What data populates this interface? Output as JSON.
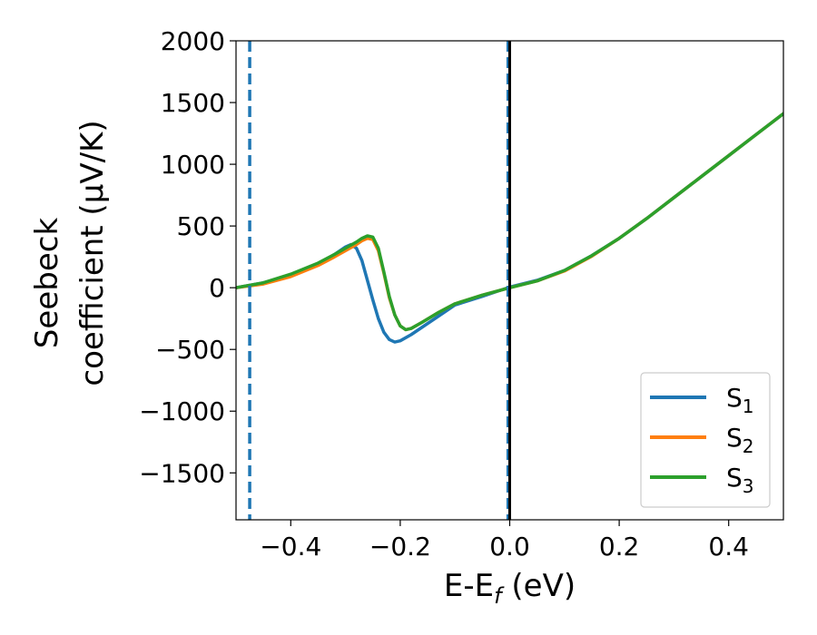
{
  "chart_data": {
    "type": "line",
    "title": "",
    "xlabel": "E-E",
    "xlabel_sub": "f",
    "xlabel_unit": " (eV)",
    "ylabel_line1": "Seebeck",
    "ylabel_line2": "coefficient  (μV/K)",
    "xlim": [
      -0.5,
      0.5
    ],
    "ylim": [
      -1880,
      2000
    ],
    "x_ticks": [
      -0.4,
      -0.2,
      0.0,
      0.2,
      0.4
    ],
    "x_tick_labels": [
      "−0.4",
      "−0.2",
      "0.0",
      "0.2",
      "0.4"
    ],
    "y_ticks": [
      2000,
      1500,
      1000,
      500,
      0,
      -500,
      -1000,
      -1500
    ],
    "y_tick_labels": [
      "2000",
      "1500",
      "1000",
      "500",
      "0",
      "−500",
      "−1000",
      "−1500"
    ],
    "grid": false,
    "legend_position": "bottom-right",
    "vertical_lines": [
      {
        "x": -0.475,
        "color": "#1f77b4",
        "style": "dashed"
      },
      {
        "x": -0.003,
        "color": "#1f77b4",
        "style": "dashed"
      },
      {
        "x": 0.0,
        "color": "#000000",
        "style": "solid"
      }
    ],
    "series": [
      {
        "name": "S",
        "sub": "1",
        "color": "#1f77b4",
        "points": [
          [
            -0.5,
            0
          ],
          [
            -0.45,
            40
          ],
          [
            -0.4,
            100
          ],
          [
            -0.35,
            190
          ],
          [
            -0.32,
            270
          ],
          [
            -0.3,
            330
          ],
          [
            -0.29,
            350
          ],
          [
            -0.28,
            320
          ],
          [
            -0.27,
            220
          ],
          [
            -0.26,
            60
          ],
          [
            -0.25,
            -100
          ],
          [
            -0.24,
            -250
          ],
          [
            -0.23,
            -360
          ],
          [
            -0.22,
            -420
          ],
          [
            -0.21,
            -440
          ],
          [
            -0.2,
            -430
          ],
          [
            -0.18,
            -380
          ],
          [
            -0.15,
            -290
          ],
          [
            -0.12,
            -200
          ],
          [
            -0.1,
            -140
          ],
          [
            -0.05,
            -70
          ],
          [
            0.0,
            5
          ],
          [
            0.05,
            60
          ],
          [
            0.1,
            140
          ],
          [
            0.15,
            260
          ],
          [
            0.2,
            400
          ],
          [
            0.25,
            560
          ],
          [
            0.3,
            730
          ],
          [
            0.35,
            900
          ],
          [
            0.4,
            1070
          ],
          [
            0.45,
            1240
          ],
          [
            0.5,
            1410
          ]
        ]
      },
      {
        "name": "S",
        "sub": "2",
        "color": "#ff7f0e",
        "points": [
          [
            -0.5,
            0
          ],
          [
            -0.45,
            30
          ],
          [
            -0.4,
            90
          ],
          [
            -0.35,
            180
          ],
          [
            -0.32,
            250
          ],
          [
            -0.3,
            300
          ],
          [
            -0.28,
            350
          ],
          [
            -0.27,
            380
          ],
          [
            -0.26,
            400
          ],
          [
            -0.25,
            390
          ],
          [
            -0.24,
            300
          ],
          [
            -0.23,
            120
          ],
          [
            -0.22,
            -80
          ],
          [
            -0.21,
            -220
          ],
          [
            -0.2,
            -310
          ],
          [
            -0.19,
            -340
          ],
          [
            -0.18,
            -330
          ],
          [
            -0.16,
            -280
          ],
          [
            -0.13,
            -200
          ],
          [
            -0.1,
            -130
          ],
          [
            -0.05,
            -60
          ],
          [
            0.0,
            0
          ],
          [
            0.05,
            55
          ],
          [
            0.1,
            135
          ],
          [
            0.15,
            255
          ],
          [
            0.2,
            400
          ],
          [
            0.25,
            560
          ],
          [
            0.3,
            730
          ],
          [
            0.35,
            900
          ],
          [
            0.4,
            1070
          ],
          [
            0.45,
            1240
          ],
          [
            0.5,
            1410
          ]
        ]
      },
      {
        "name": "S",
        "sub": "3",
        "color": "#2ca02c",
        "points": [
          [
            -0.5,
            0
          ],
          [
            -0.45,
            40
          ],
          [
            -0.4,
            110
          ],
          [
            -0.35,
            200
          ],
          [
            -0.32,
            270
          ],
          [
            -0.3,
            320
          ],
          [
            -0.28,
            370
          ],
          [
            -0.27,
            400
          ],
          [
            -0.26,
            420
          ],
          [
            -0.25,
            410
          ],
          [
            -0.24,
            320
          ],
          [
            -0.23,
            130
          ],
          [
            -0.22,
            -70
          ],
          [
            -0.21,
            -220
          ],
          [
            -0.2,
            -310
          ],
          [
            -0.19,
            -340
          ],
          [
            -0.18,
            -330
          ],
          [
            -0.16,
            -280
          ],
          [
            -0.13,
            -200
          ],
          [
            -0.1,
            -130
          ],
          [
            -0.05,
            -60
          ],
          [
            0.0,
            0
          ],
          [
            0.05,
            55
          ],
          [
            0.1,
            140
          ],
          [
            0.15,
            260
          ],
          [
            0.2,
            400
          ],
          [
            0.25,
            560
          ],
          [
            0.3,
            730
          ],
          [
            0.35,
            900
          ],
          [
            0.4,
            1070
          ],
          [
            0.45,
            1240
          ],
          [
            0.5,
            1410
          ]
        ]
      }
    ]
  }
}
